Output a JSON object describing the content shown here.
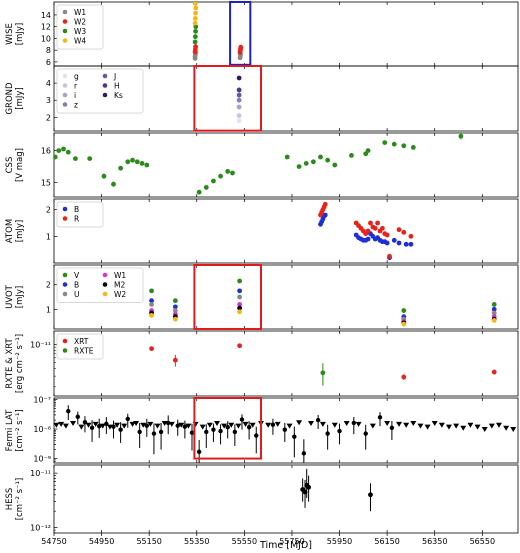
{
  "figure": {
    "xlabel": "Time [MJD]",
    "xlim": [
      54750,
      56700
    ],
    "xticks": [
      54750,
      54950,
      55150,
      55350,
      55550,
      55750,
      55950,
      56150,
      56350,
      56550
    ]
  },
  "chart_data": [
    {
      "type": "scatter",
      "id": "wise",
      "ylabel_lines": [
        "WISE",
        "[mJy]"
      ],
      "ylim": [
        5.3,
        16.2
      ],
      "yscale": "linear",
      "yticks": [
        6,
        8,
        10,
        12,
        14
      ],
      "legend": "top-left",
      "series": [
        {
          "name": "W1",
          "color": "#888888",
          "x": [
            55343,
            55343,
            55344,
            55345,
            55532,
            55533,
            55534
          ],
          "y": [
            6.6,
            6.9,
            7.2,
            7.6,
            6.7,
            7.0,
            7.3
          ]
        },
        {
          "name": "W2",
          "color": "#e8231b",
          "x": [
            55343,
            55344,
            55345,
            55532,
            55533,
            55534,
            55535
          ],
          "y": [
            7.7,
            8.1,
            8.6,
            7.6,
            7.9,
            8.2,
            8.5
          ]
        },
        {
          "name": "W3",
          "color": "#2a8a1a",
          "x": [
            55343,
            55344,
            55345,
            55346
          ],
          "y": [
            9.4,
            10.3,
            11.2,
            12.0
          ]
        },
        {
          "name": "W4",
          "color": "#f7b51c",
          "x": [
            55343,
            55344,
            55345,
            55346,
            55343
          ],
          "y": [
            12.6,
            13.4,
            14.3,
            15.2,
            16.0
          ]
        }
      ],
      "boxes": [
        {
          "color": "#1f1fcc",
          "x0": 55490,
          "x1": 55575,
          "y0": 5.5,
          "y1": 16.3
        }
      ]
    },
    {
      "type": "scatter",
      "id": "grond",
      "ylabel_lines": [
        "GROND",
        "[mJy]"
      ],
      "ylim": [
        1.2,
        5.0
      ],
      "yscale": "linear",
      "yticks": [
        2,
        3,
        4
      ],
      "legend": "top-left",
      "series": [
        {
          "name": "g",
          "color": "#e4e0ee",
          "x": [
            55528
          ],
          "y": [
            1.8
          ]
        },
        {
          "name": "r",
          "color": "#cac3df",
          "x": [
            55528
          ],
          "y": [
            2.1
          ]
        },
        {
          "name": "i",
          "color": "#aaa0cc",
          "x": [
            55528
          ],
          "y": [
            2.6
          ]
        },
        {
          "name": "z",
          "color": "#8a7ab8",
          "x": [
            55528
          ],
          "y": [
            3.0
          ]
        },
        {
          "name": "J",
          "color": "#6a56a0",
          "x": [
            55528
          ],
          "y": [
            3.3
          ]
        },
        {
          "name": "H",
          "color": "#4e3585",
          "x": [
            55528
          ],
          "y": [
            3.6
          ]
        },
        {
          "name": "Ks",
          "color": "#34195e",
          "x": [
            55528
          ],
          "y": [
            4.3
          ]
        }
      ],
      "boxes": [
        {
          "color": "#e11b1b",
          "x0": 55340,
          "x1": 55620,
          "y0": 1.22,
          "y1": 5.1
        }
      ]
    },
    {
      "type": "scatter",
      "id": "css",
      "ylabel_lines": [
        "CSS",
        "[V mag]"
      ],
      "ylim": [
        14.55,
        16.55
      ],
      "yscale": "linear",
      "yticks": [
        15,
        16
      ],
      "series": [
        {
          "name": "",
          "color": "#2a8a1a",
          "errorbar": true,
          "x": [
            54755,
            54770,
            54790,
            54810,
            54840,
            54900,
            54960,
            55000,
            55030,
            55060,
            55080,
            55100,
            55120,
            55140,
            55360,
            55390,
            55420,
            55450,
            55480,
            55500,
            55730,
            55780,
            55810,
            55840,
            55870,
            55900,
            55930,
            56000,
            56060,
            56070,
            56140,
            56180,
            56220,
            56260,
            56460
          ],
          "y": [
            15.8,
            16.0,
            16.05,
            15.95,
            15.75,
            15.75,
            15.2,
            14.95,
            15.45,
            15.65,
            15.7,
            15.65,
            15.6,
            15.55,
            14.7,
            14.85,
            15.05,
            15.2,
            15.35,
            15.3,
            15.8,
            15.5,
            15.6,
            15.65,
            15.8,
            15.7,
            15.55,
            15.85,
            15.9,
            16.0,
            16.25,
            16.2,
            16.15,
            16.1,
            16.45
          ],
          "err": [
            0.06,
            0.06,
            0.06,
            0.06,
            0.06,
            0.06,
            0.08,
            0.08,
            0.06,
            0.06,
            0.06,
            0.06,
            0.06,
            0.06,
            0.06,
            0.06,
            0.06,
            0.06,
            0.06,
            0.06,
            0.06,
            0.06,
            0.06,
            0.06,
            0.06,
            0.06,
            0.06,
            0.06,
            0.06,
            0.06,
            0.06,
            0.06,
            0.06,
            0.06,
            0.1
          ]
        }
      ]
    },
    {
      "type": "scatter",
      "id": "atom",
      "ylabel_lines": [
        "ATOM",
        "[mJy]"
      ],
      "ylim": [
        0.0,
        2.4
      ],
      "yscale": "linear",
      "yticks": [
        1,
        2
      ],
      "legend": "top-left",
      "series": [
        {
          "name": "B",
          "color": "#1f2fd6",
          "x": [
            55870,
            55875,
            55880,
            55885,
            55890,
            56020,
            56030,
            56040,
            56050,
            56060,
            56070,
            56080,
            56090,
            56100,
            56110,
            56120,
            56130,
            56140,
            56150,
            56160,
            56180,
            56200,
            56230,
            56250
          ],
          "y": [
            1.45,
            1.55,
            1.65,
            1.75,
            1.8,
            1.05,
            0.95,
            0.9,
            0.85,
            0.85,
            0.9,
            1.1,
            1.0,
            0.9,
            0.95,
            0.85,
            0.8,
            0.8,
            0.75,
            0.2,
            0.85,
            0.75,
            0.7,
            0.7
          ]
        },
        {
          "name": "R",
          "color": "#e8231b",
          "x": [
            55870,
            55875,
            55880,
            55885,
            55890,
            56020,
            56030,
            56040,
            56050,
            56060,
            56070,
            56080,
            56090,
            56100,
            56110,
            56120,
            56130,
            56140,
            56150,
            56160,
            56200,
            56220,
            56250
          ],
          "y": [
            1.8,
            1.9,
            2.0,
            2.1,
            2.2,
            1.5,
            1.4,
            1.3,
            1.2,
            1.1,
            1.2,
            1.5,
            1.35,
            1.3,
            1.5,
            1.2,
            1.3,
            1.1,
            1.05,
            0.25,
            1.25,
            1.15,
            1.0
          ]
        }
      ]
    },
    {
      "type": "scatter",
      "id": "uvot",
      "ylabel_lines": [
        "UVOT",
        "[mJy]"
      ],
      "ylim": [
        0.2,
        2.8
      ],
      "yscale": "linear",
      "yticks": [
        1,
        2
      ],
      "legend": "top-left",
      "series": [
        {
          "name": "V",
          "color": "#2a8a1a",
          "x": [
            55160,
            55260,
            55530,
            56220,
            56600
          ],
          "y": [
            1.75,
            1.35,
            2.15,
            0.95,
            1.2
          ]
        },
        {
          "name": "B",
          "color": "#1f2fd6",
          "x": [
            55160,
            55260,
            55530,
            56220,
            56600
          ],
          "y": [
            1.35,
            1.1,
            1.75,
            0.7,
            1.0
          ]
        },
        {
          "name": "U",
          "color": "#888888",
          "x": [
            55160,
            55260,
            55530,
            56220,
            56600
          ],
          "y": [
            1.2,
            0.95,
            1.5,
            0.6,
            0.85
          ]
        },
        {
          "name": "W1",
          "color": "#e32bd6",
          "x": [
            55160,
            55260,
            55530,
            56220,
            56600
          ],
          "y": [
            0.95,
            0.8,
            1.2,
            0.5,
            0.7
          ]
        },
        {
          "name": "M2",
          "color": "#000000",
          "x": [
            55160,
            55260,
            55530,
            56220,
            56600
          ],
          "y": [
            0.85,
            0.7,
            1.05,
            0.45,
            0.6
          ]
        },
        {
          "name": "W2",
          "color": "#f7b51c",
          "x": [
            55160,
            55260,
            55530,
            56220,
            56600
          ],
          "y": [
            0.75,
            0.6,
            0.9,
            0.4,
            0.55
          ]
        }
      ],
      "boxes": [
        {
          "color": "#e11b1b",
          "x0": 55340,
          "x1": 55620,
          "y0": 0.2,
          "y1": 2.8
        }
      ]
    },
    {
      "type": "scatter",
      "id": "xrt",
      "ylabel_lines": [
        "RXTE & XRT",
        "[erg cm⁻² s⁻¹]"
      ],
      "ylim_log": [
        -11.85,
        -10.78
      ],
      "yscale": "log",
      "ytick_exp": [
        -11
      ],
      "ytick_labels": [
        "10⁻¹¹"
      ],
      "legend": "top-left",
      "series": [
        {
          "name": "XRT",
          "color": "#e8231b",
          "errorbar": true,
          "x": [
            55160,
            55260,
            55530,
            56220,
            56600
          ],
          "y": [
            8.5e-12,
            5.5e-12,
            9.5e-12,
            2.9e-12,
            3.5e-12
          ],
          "err_lo": [
            5e-13,
            1.2e-12,
            8e-13,
            3e-13,
            3e-13
          ],
          "err_hi": [
            5e-13,
            1.2e-12,
            8e-13,
            3e-13,
            3e-13
          ]
        },
        {
          "name": "RXTE",
          "color": "#2a8a1a",
          "errorbar": true,
          "x": [
            55880
          ],
          "y": [
            3.4e-12
          ],
          "err_lo": [
            1.3e-12
          ],
          "err_hi": [
            1.5e-12
          ]
        }
      ]
    },
    {
      "type": "scatter",
      "id": "fermi",
      "ylabel_lines": [
        "Fermi LAT",
        "[cm⁻² s⁻¹]"
      ],
      "ylim_log": [
        -9.15,
        -6.95
      ],
      "yscale": "log",
      "ytick_exp": [
        -9,
        -8,
        -7
      ],
      "ytick_labels": [
        "10⁻⁹",
        "10⁻⁸",
        "10⁻⁷"
      ],
      "points": {
        "x": [
          54810,
          54850,
          54880,
          54910,
          54940,
          54970,
          55000,
          55030,
          55060,
          55110,
          55140,
          55170,
          55200,
          55230,
          55270,
          55300,
          55330,
          55360,
          55390,
          55420,
          55450,
          55480,
          55510,
          55540,
          55570,
          55600,
          55670,
          55720,
          55760,
          55800,
          55860,
          55900,
          55950,
          56010,
          56060,
          56120,
          56170
        ],
        "y": [
          4e-08,
          2.6e-08,
          1.7e-08,
          1.1e-08,
          1.25e-08,
          1.5e-08,
          1.2e-08,
          9.5e-09,
          2.2e-08,
          8e-09,
          1.3e-08,
          7e-09,
          8e-09,
          1.6e-08,
          1.3e-08,
          1.2e-08,
          7.5e-09,
          1.7e-09,
          8e-09,
          9.5e-09,
          8.5e-09,
          1.15e-08,
          8e-09,
          2.1e-08,
          1.15e-08,
          6e-09,
          1.4e-08,
          9.5e-09,
          5.5e-09,
          1.5e-09,
          2e-08,
          7e-09,
          8.5e-09,
          1.6e-08,
          7e-09,
          2.5e-08,
          1.1e-08
        ],
        "up_factor": [
          1.6,
          1.5,
          1.6,
          1.8,
          1.8,
          1.7,
          1.6,
          1.8,
          1.5,
          2.0,
          1.7,
          2.2,
          2.0,
          1.8,
          1.6,
          1.6,
          2.0,
          2.5,
          1.8,
          1.6,
          1.7,
          1.6,
          1.8,
          1.5,
          1.6,
          2.0,
          1.6,
          1.7,
          2.2,
          3.0,
          1.5,
          2.0,
          1.8,
          1.6,
          2.0,
          1.5,
          1.7
        ],
        "down_factor": [
          2.0,
          1.8,
          2.2,
          3.0,
          2.5,
          2.2,
          2.5,
          2.8,
          2.0,
          3.5,
          2.4,
          5.0,
          4.0,
          2.4,
          2.2,
          2.5,
          4.0,
          3.0,
          3.5,
          2.6,
          2.8,
          2.4,
          3.0,
          2.2,
          2.6,
          4.0,
          2.2,
          2.6,
          5.0,
          3.0,
          2.0,
          3.5,
          2.8,
          2.4,
          3.5,
          2.0,
          2.6
        ]
      },
      "upper_limits": {
        "x": [
          54760,
          54780,
          54800,
          54830,
          54865,
          54895,
          54925,
          54955,
          54985,
          55015,
          55045,
          55080,
          55095,
          55125,
          55155,
          55185,
          55215,
          55245,
          55285,
          55315,
          55345,
          55375,
          55405,
          55435,
          55465,
          55495,
          55525,
          55555,
          55585,
          55620,
          55650,
          55690,
          55740,
          55780,
          55830,
          55880,
          55930,
          55980,
          56030,
          56090,
          56150,
          56200,
          56230,
          56260,
          56290,
          56320,
          56350,
          56380,
          56410,
          56440,
          56470,
          56500,
          56530,
          56560,
          56590,
          56620,
          56650,
          56680
        ],
        "y": [
          1.4e-08,
          1.5e-08,
          1.3e-08,
          1.6e-08,
          1.2e-08,
          1.4e-08,
          1.5e-08,
          1.3e-08,
          1.2e-08,
          1.4e-08,
          1.3e-08,
          1.5e-08,
          1.6e-08,
          1.4e-08,
          1.5e-08,
          1.3e-08,
          1.6e-08,
          1.5e-08,
          1.4e-08,
          1.3e-08,
          1.5e-08,
          1.2e-08,
          1.4e-08,
          1.6e-08,
          1.3e-08,
          1.4e-08,
          1.3e-08,
          1.5e-08,
          1.4e-08,
          1.6e-08,
          1.4e-08,
          1.5e-08,
          1.3e-08,
          1.7e-08,
          1.6e-08,
          1.5e-08,
          1.4e-08,
          1.6e-08,
          1.5e-08,
          1.3e-08,
          1.6e-08,
          1.5e-08,
          1.4e-08,
          1.6e-08,
          1.3e-08,
          1.2e-08,
          1.6e-08,
          1.4e-08,
          1.2e-08,
          1.3e-08,
          1.1e-08,
          1.4e-08,
          1.2e-08,
          1e-08,
          1.3e-08,
          1.4e-08,
          1.1e-08,
          1e-08
        ]
      },
      "boxes": [
        {
          "color": "#e11b1b",
          "x0": 55340,
          "x1": 55620,
          "ylog0": -9.0,
          "ylog1": -6.95
        }
      ]
    },
    {
      "type": "scatter",
      "id": "hess",
      "ylabel_lines": [
        "HESS",
        "[cm⁻² s⁻¹]"
      ],
      "ylim_log": [
        -12.1,
        -10.85
      ],
      "yscale": "log",
      "ytick_exp": [
        -12,
        -11
      ],
      "ytick_labels": [
        "10⁻¹²",
        "10⁻¹¹"
      ],
      "series": [
        {
          "name": "",
          "color": "#000000",
          "errorbar": true,
          "x": [
            55795,
            55805,
            55812,
            55820,
            56080
          ],
          "y": [
            5e-12,
            4.5e-12,
            6e-12,
            5.5e-12,
            4e-12
          ],
          "err_lo": [
            2e-12,
            2.2e-12,
            2.5e-12,
            2.5e-12,
            2e-12
          ],
          "err_hi": [
            3e-12,
            3e-12,
            6e-12,
            3.5e-12,
            2.5e-12
          ]
        }
      ]
    }
  ]
}
